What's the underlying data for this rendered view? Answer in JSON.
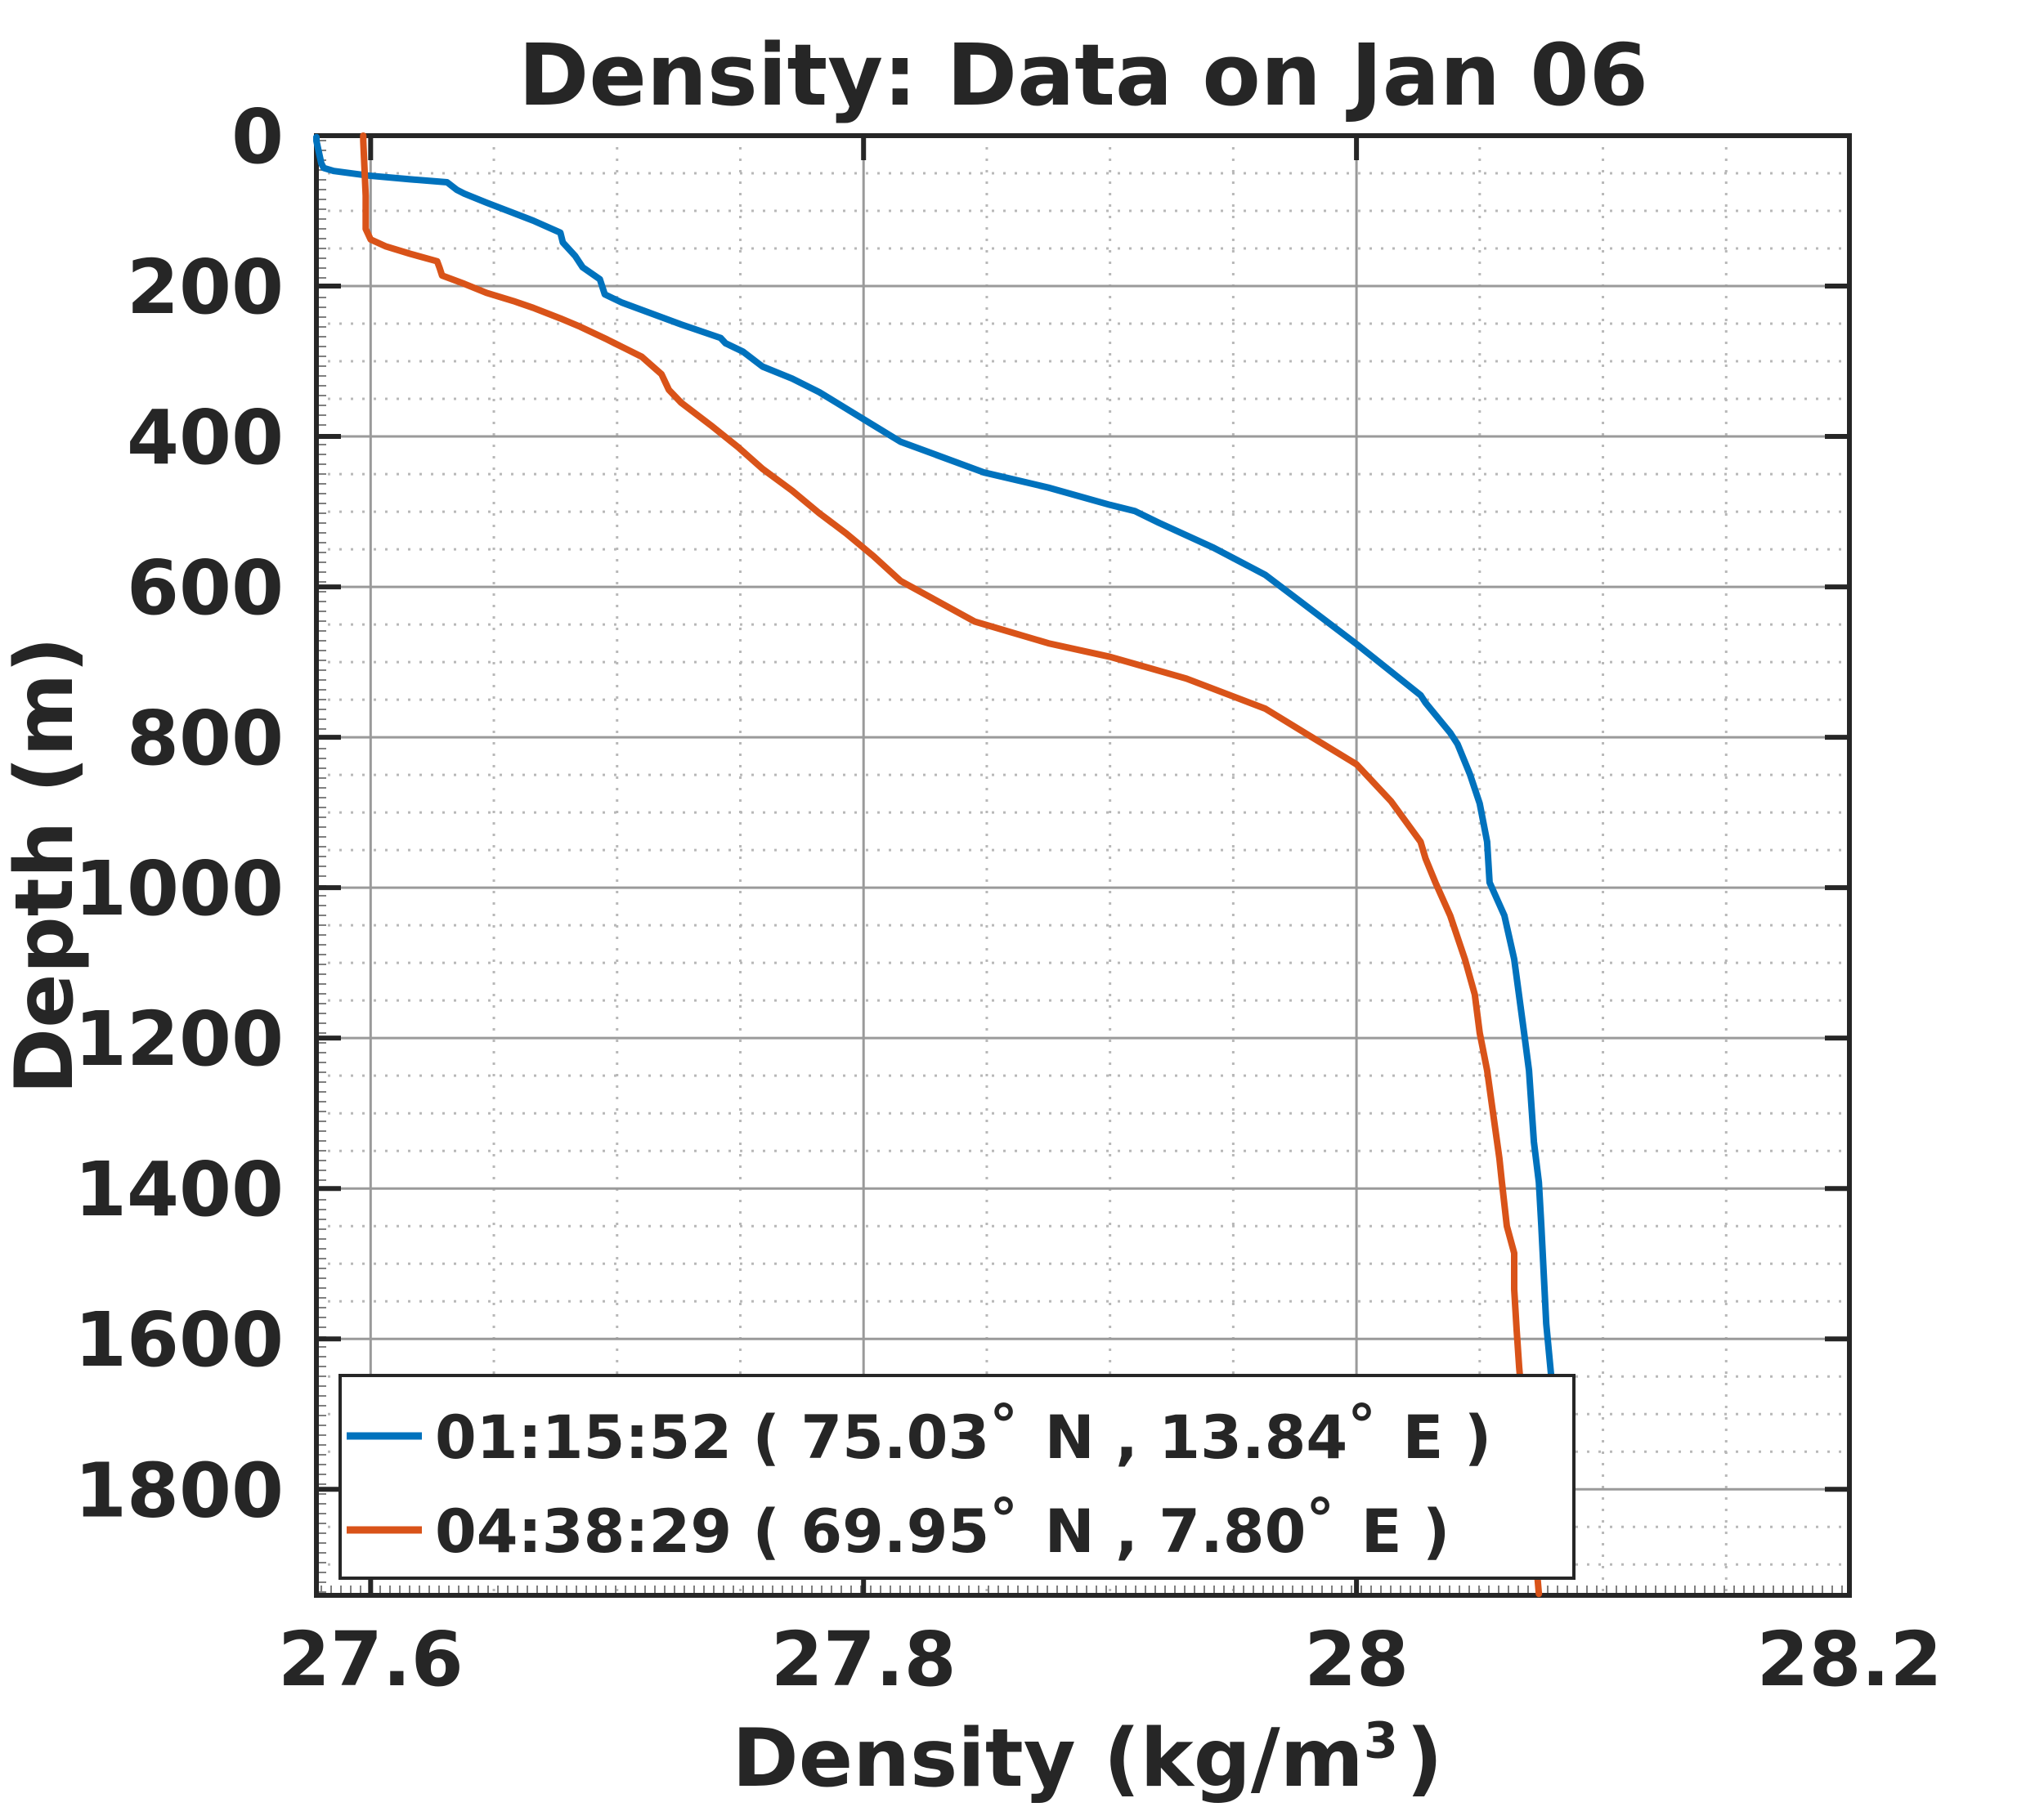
{
  "chart_data": {
    "type": "line",
    "title": "Density: Data on Jan 06",
    "xlabel": "Density (kg/m³)",
    "ylabel": "Depth (m)",
    "xlim": [
      27.578,
      28.2
    ],
    "ylim": [
      0,
      1941
    ],
    "y_axis_direction": "reversed (0 at top, depth increases downward)",
    "grid": true,
    "minor_grid": true,
    "x_minor_step": 0.05,
    "y_minor_step": 50,
    "legend_position": "bottom-left",
    "x_ticks": {
      "values": [
        27.6,
        27.8,
        28.0,
        28.2
      ],
      "labels": [
        "27.6",
        "27.8",
        "28",
        "28.2"
      ]
    },
    "y_ticks": {
      "values": [
        0,
        200,
        400,
        600,
        800,
        1000,
        1200,
        1400,
        1600,
        1800
      ],
      "labels": [
        "0",
        "200",
        "400",
        "600",
        "800",
        "1000",
        "1200",
        "1400",
        "1600",
        "1800"
      ]
    },
    "colors": {
      "series_blue": "#0072BD",
      "series_orange": "#D95319",
      "major_grid": "#9a9a9a",
      "minor_grid": "#b8b8b8",
      "axis": "#262626"
    },
    "series": [
      {
        "name": "01:15:52 ( 75.03° N , 13.84° E )",
        "color": "#0072BD",
        "x_is": "density_kg_m3",
        "y_is": "depth_m",
        "points": [
          [
            27.578,
            2
          ],
          [
            27.578,
            7
          ],
          [
            27.58,
            37
          ],
          [
            27.581,
            43
          ],
          [
            27.585,
            47
          ],
          [
            27.599,
            53
          ],
          [
            27.616,
            58
          ],
          [
            27.631,
            62
          ],
          [
            27.635,
            72
          ],
          [
            27.638,
            77
          ],
          [
            27.647,
            89
          ],
          [
            27.666,
            113
          ],
          [
            27.677,
            129
          ],
          [
            27.678,
            142
          ],
          [
            27.683,
            160
          ],
          [
            27.686,
            175
          ],
          [
            27.693,
            191
          ],
          [
            27.695,
            211
          ],
          [
            27.702,
            222
          ],
          [
            27.726,
            251
          ],
          [
            27.742,
            269
          ],
          [
            27.744,
            276
          ],
          [
            27.751,
            287
          ],
          [
            27.759,
            307
          ],
          [
            27.771,
            323
          ],
          [
            27.782,
            341
          ],
          [
            27.793,
            363
          ],
          [
            27.804,
            385
          ],
          [
            27.815,
            407
          ],
          [
            27.849,
            448
          ],
          [
            27.875,
            468
          ],
          [
            27.9,
            491
          ],
          [
            27.91,
            499
          ],
          [
            27.92,
            515
          ],
          [
            27.942,
            548
          ],
          [
            27.963,
            584
          ],
          [
            28.0,
            676
          ],
          [
            28.026,
            744
          ],
          [
            28.028,
            754
          ],
          [
            28.038,
            794
          ],
          [
            28.041,
            809
          ],
          [
            28.046,
            849
          ],
          [
            28.05,
            888
          ],
          [
            28.053,
            939
          ],
          [
            28.054,
            993
          ],
          [
            28.06,
            1037
          ],
          [
            28.064,
            1095
          ],
          [
            28.068,
            1193
          ],
          [
            28.07,
            1243
          ],
          [
            28.072,
            1338
          ],
          [
            28.074,
            1392
          ],
          [
            28.075,
            1450
          ],
          [
            28.076,
            1515
          ],
          [
            28.077,
            1580
          ],
          [
            28.079,
            1649
          ],
          [
            28.08,
            1754
          ],
          [
            28.081,
            1885
          ]
        ]
      },
      {
        "name": "04:38:29 ( 69.95° N , 7.80° E )",
        "color": "#D95319",
        "x_is": "density_kg_m3",
        "y_is": "depth_m",
        "points": [
          [
            27.597,
            0
          ],
          [
            27.597,
            7
          ],
          [
            27.598,
            80
          ],
          [
            27.598,
            124
          ],
          [
            27.6,
            138
          ],
          [
            27.606,
            147
          ],
          [
            27.616,
            157
          ],
          [
            27.627,
            167
          ],
          [
            27.628,
            176
          ],
          [
            27.629,
            186
          ],
          [
            27.638,
            197
          ],
          [
            27.647,
            209
          ],
          [
            27.658,
            220
          ],
          [
            27.666,
            229
          ],
          [
            27.677,
            243
          ],
          [
            27.685,
            254
          ],
          [
            27.696,
            271
          ],
          [
            27.699,
            276
          ],
          [
            27.71,
            294
          ],
          [
            27.718,
            317
          ],
          [
            27.721,
            338
          ],
          [
            27.726,
            355
          ],
          [
            27.738,
            385
          ],
          [
            27.749,
            414
          ],
          [
            27.759,
            443
          ],
          [
            27.771,
            472
          ],
          [
            27.782,
            502
          ],
          [
            27.793,
            529
          ],
          [
            27.804,
            559
          ],
          [
            27.815,
            592
          ],
          [
            27.845,
            646
          ],
          [
            27.875,
            675
          ],
          [
            27.9,
            693
          ],
          [
            27.931,
            722
          ],
          [
            27.963,
            762
          ],
          [
            27.981,
            798
          ],
          [
            28.0,
            836
          ],
          [
            28.014,
            885
          ],
          [
            28.026,
            939
          ],
          [
            28.028,
            961
          ],
          [
            28.032,
            993
          ],
          [
            28.038,
            1037
          ],
          [
            28.044,
            1095
          ],
          [
            28.048,
            1142
          ],
          [
            28.05,
            1193
          ],
          [
            28.053,
            1243
          ],
          [
            28.055,
            1290
          ],
          [
            28.058,
            1360
          ],
          [
            28.059,
            1392
          ],
          [
            28.061,
            1450
          ],
          [
            28.064,
            1486
          ],
          [
            28.064,
            1534
          ],
          [
            28.065,
            1588
          ],
          [
            28.066,
            1638
          ],
          [
            28.07,
            1787
          ],
          [
            28.074,
            1939
          ]
        ]
      }
    ],
    "legend": {
      "entries": [
        {
          "label": "01:15:52 ( 75.03° N , 13.84° E )",
          "color": "#0072BD"
        },
        {
          "label": "04:38:29 ( 69.95° N , 7.80° E )",
          "color": "#D95319"
        }
      ]
    }
  }
}
